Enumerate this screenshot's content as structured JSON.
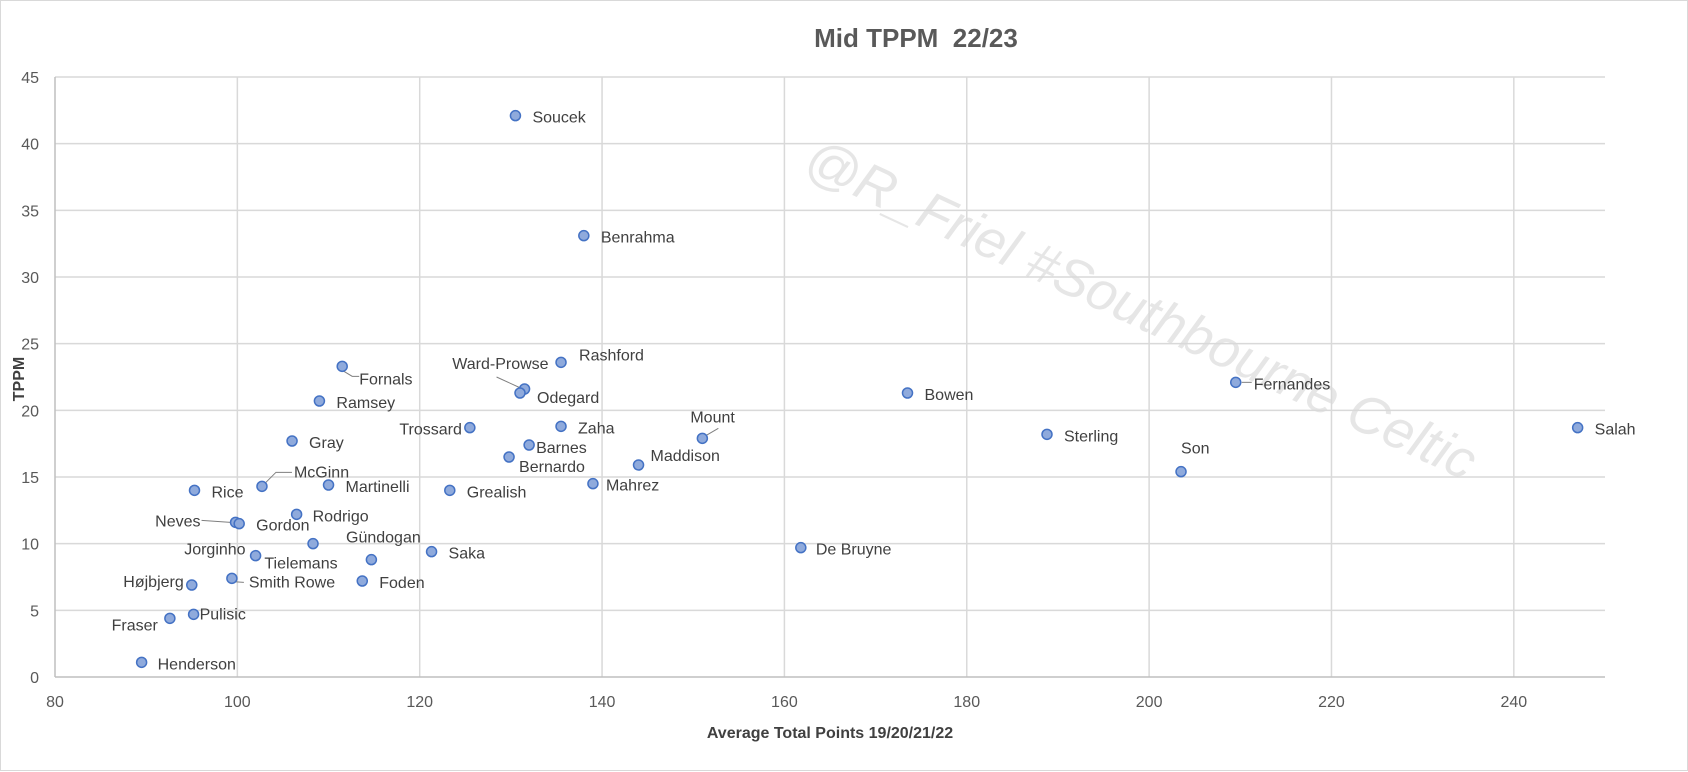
{
  "chart_data": {
    "type": "scatter",
    "title": "Mid TPPM  22/23",
    "xlabel": "Average Total Points 19/20/21/22",
    "ylabel": "TPPM",
    "xlim": [
      80,
      250
    ],
    "ylim": [
      0,
      45
    ],
    "xticks": [
      80,
      100,
      120,
      140,
      160,
      180,
      200,
      220,
      240
    ],
    "yticks": [
      0,
      5,
      10,
      15,
      20,
      25,
      30,
      35,
      40,
      45
    ],
    "grid": true,
    "watermark": "@R_Friel #Southbourne Celtic",
    "colors": {
      "marker_fill": "#8faadc",
      "marker_edge": "#4472c4",
      "grid": "#d9d9d9",
      "title": "#595959"
    },
    "points": [
      {
        "name": "Soucek",
        "x": 130.5,
        "y": 42.1
      },
      {
        "name": "Benrahma",
        "x": 138,
        "y": 33.1
      },
      {
        "name": "Rashford",
        "x": 135.5,
        "y": 23.6
      },
      {
        "name": "Ward-Prowse",
        "x": 131.5,
        "y": 21.6
      },
      {
        "name": "Odegard",
        "x": 131,
        "y": 21.3
      },
      {
        "name": "Fornals",
        "x": 111.5,
        "y": 23.3
      },
      {
        "name": "Ramsey",
        "x": 109,
        "y": 20.7
      },
      {
        "name": "Bowen",
        "x": 173.5,
        "y": 21.3
      },
      {
        "name": "Fernandes",
        "x": 209.5,
        "y": 22.1
      },
      {
        "name": "Salah",
        "x": 247,
        "y": 18.7
      },
      {
        "name": "Sterling",
        "x": 188.8,
        "y": 18.2
      },
      {
        "name": "Son",
        "x": 203.5,
        "y": 15.4
      },
      {
        "name": "Mount",
        "x": 151,
        "y": 17.9
      },
      {
        "name": "Maddison",
        "x": 144,
        "y": 15.9
      },
      {
        "name": "Mahrez",
        "x": 139,
        "y": 14.5
      },
      {
        "name": "Zaha",
        "x": 135.5,
        "y": 18.8
      },
      {
        "name": "Barnes",
        "x": 132,
        "y": 17.4
      },
      {
        "name": "Bernardo",
        "x": 129.8,
        "y": 16.5
      },
      {
        "name": "Trossard",
        "x": 125.5,
        "y": 18.7
      },
      {
        "name": "Grealish",
        "x": 123.3,
        "y": 14
      },
      {
        "name": "Gray",
        "x": 106,
        "y": 17.7
      },
      {
        "name": "McGinn",
        "x": 102.7,
        "y": 14.3
      },
      {
        "name": "Martinelli",
        "x": 110,
        "y": 14.4
      },
      {
        "name": "Rice",
        "x": 95.3,
        "y": 14
      },
      {
        "name": "Rodrigo",
        "x": 106.5,
        "y": 12.2
      },
      {
        "name": "Neves",
        "x": 99.8,
        "y": 11.6
      },
      {
        "name": "Gordon",
        "x": 100.2,
        "y": 11.5
      },
      {
        "name": "Gündogan",
        "x": 108.3,
        "y": 10
      },
      {
        "name": "Saka",
        "x": 121.3,
        "y": 9.4
      },
      {
        "name": "De Bruyne",
        "x": 161.8,
        "y": 9.7
      },
      {
        "name": "Jorginho",
        "x": 102,
        "y": 9.1
      },
      {
        "name": "Tielemans",
        "x": 114.7,
        "y": 8.8
      },
      {
        "name": "Foden",
        "x": 113.7,
        "y": 7.2
      },
      {
        "name": "Smith Rowe",
        "x": 99.4,
        "y": 7.4
      },
      {
        "name": "Højbjerg",
        "x": 95,
        "y": 6.9
      },
      {
        "name": "Pulisic",
        "x": 95.2,
        "y": 4.7
      },
      {
        "name": "Fraser",
        "x": 92.6,
        "y": 4.4
      },
      {
        "name": "Henderson",
        "x": 89.5,
        "y": 1.1
      }
    ]
  }
}
